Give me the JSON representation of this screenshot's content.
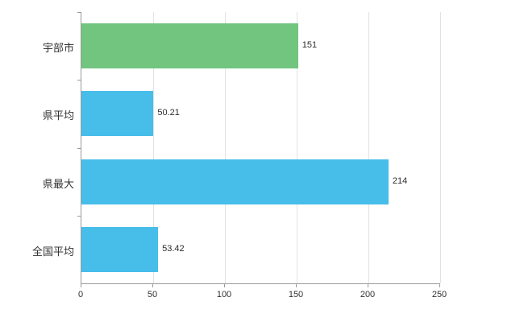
{
  "chart_data": {
    "type": "bar",
    "orientation": "horizontal",
    "title": "",
    "xlabel": "",
    "ylabel": "",
    "categories": [
      "宇部市",
      "県平均",
      "県最大",
      "全国平均"
    ],
    "values": [
      151,
      50.21,
      214,
      53.42
    ],
    "value_labels": [
      "151",
      "50.21",
      "214",
      "53.42"
    ],
    "bar_colors": [
      "#71c57f",
      "#47bdea",
      "#47bdea",
      "#47bdea"
    ],
    "x_ticks": [
      0,
      50,
      100,
      150,
      200,
      250
    ],
    "xlim": [
      0,
      250
    ],
    "grid": true,
    "legend": "none",
    "axis_color": "#9a9a9a",
    "gridline_color": "#e2e2e2"
  }
}
